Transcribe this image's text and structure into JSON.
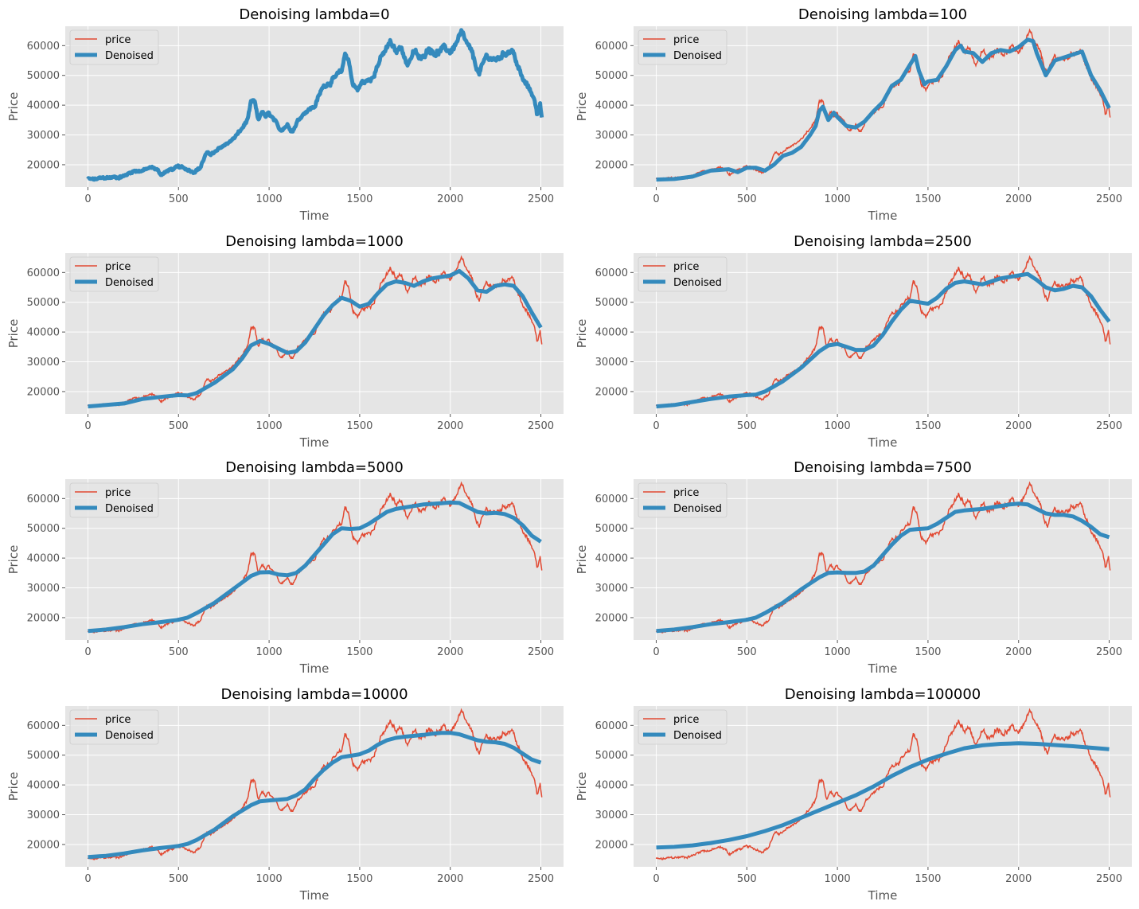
{
  "series_names": [
    "price",
    "Denoised"
  ],
  "colors": {
    "price": "#E24A33",
    "denoised": "#348ABD",
    "panel_bg": "#E5E5E5",
    "grid": "#FFFFFF",
    "text": "#555555"
  },
  "chart_data": [
    {
      "type": "line",
      "title": "Denoising lambda=0",
      "xlabel": "Time",
      "ylabel": "Price",
      "xlim": [
        -125,
        2625
      ],
      "ylim": [
        12500,
        66500
      ],
      "xticks": [
        0,
        500,
        1000,
        1500,
        2000,
        2500
      ],
      "yticks": [
        20000,
        30000,
        40000,
        50000,
        60000
      ],
      "legend": "upper-left",
      "grid": true,
      "denoised": {
        "x": [],
        "y": []
      }
    },
    {
      "type": "line",
      "title": "Denoising lambda=100",
      "xlabel": "Time",
      "ylabel": "Price",
      "xlim": [
        -125,
        2625
      ],
      "ylim": [
        12500,
        66500
      ],
      "xticks": [
        0,
        500,
        1000,
        1500,
        2000,
        2500
      ],
      "yticks": [
        20000,
        30000,
        40000,
        50000,
        60000
      ],
      "legend": "upper-left",
      "grid": true,
      "denoised": {
        "x": [
          0,
          100,
          200,
          300,
          400,
          450,
          500,
          550,
          600,
          650,
          700,
          750,
          800,
          850,
          880,
          900,
          920,
          950,
          980,
          1000,
          1050,
          1100,
          1150,
          1200,
          1250,
          1300,
          1350,
          1400,
          1430,
          1450,
          1480,
          1500,
          1550,
          1600,
          1650,
          1680,
          1700,
          1750,
          1800,
          1850,
          1900,
          1950,
          2000,
          2050,
          2080,
          2100,
          2150,
          2200,
          2250,
          2300,
          2350,
          2400,
          2450,
          2500
        ],
        "y": [
          15000,
          15200,
          16000,
          18000,
          18500,
          17500,
          19000,
          19000,
          18000,
          20000,
          23000,
          24000,
          26000,
          30000,
          33000,
          38000,
          39500,
          35000,
          37500,
          36000,
          33000,
          32500,
          34500,
          38000,
          41000,
          46500,
          48500,
          53500,
          56500,
          51500,
          47000,
          48000,
          48500,
          53000,
          58500,
          60000,
          58000,
          57500,
          54500,
          57500,
          58500,
          58000,
          59500,
          62000,
          61500,
          57500,
          50000,
          55000,
          56000,
          57000,
          58000,
          50000,
          45000,
          39000
        ]
      }
    },
    {
      "type": "line",
      "title": "Denoising lambda=1000",
      "xlabel": "Time",
      "ylabel": "Price",
      "xlim": [
        -125,
        2625
      ],
      "ylim": [
        12500,
        66500
      ],
      "xticks": [
        0,
        500,
        1000,
        1500,
        2000,
        2500
      ],
      "yticks": [
        20000,
        30000,
        40000,
        50000,
        60000
      ],
      "legend": "upper-left",
      "grid": true,
      "denoised": {
        "x": [
          0,
          100,
          200,
          300,
          400,
          500,
          550,
          600,
          700,
          800,
          850,
          900,
          950,
          1000,
          1050,
          1100,
          1150,
          1200,
          1250,
          1300,
          1350,
          1400,
          1450,
          1500,
          1550,
          1600,
          1650,
          1700,
          1750,
          1800,
          1850,
          1900,
          1950,
          2000,
          2050,
          2100,
          2150,
          2200,
          2250,
          2300,
          2350,
          2400,
          2450,
          2500
        ],
        "y": [
          15000,
          15500,
          16000,
          17500,
          18200,
          18800,
          18700,
          19500,
          23000,
          27500,
          31000,
          35500,
          37000,
          36000,
          34500,
          33000,
          33500,
          36500,
          41000,
          45500,
          49000,
          51500,
          50500,
          48500,
          49500,
          53000,
          56000,
          57000,
          56500,
          55500,
          57000,
          58000,
          58500,
          59000,
          60500,
          58000,
          54000,
          53500,
          55500,
          56000,
          55500,
          52000,
          46500,
          41500
        ]
      }
    },
    {
      "type": "line",
      "title": "Denoising lambda=2500",
      "xlabel": "Time",
      "ylabel": "Price",
      "xlim": [
        -125,
        2625
      ],
      "ylim": [
        12500,
        66500
      ],
      "xticks": [
        0,
        500,
        1000,
        1500,
        2000,
        2500
      ],
      "yticks": [
        20000,
        30000,
        40000,
        50000,
        60000
      ],
      "legend": "upper-left",
      "grid": true,
      "denoised": {
        "x": [
          0,
          100,
          200,
          300,
          400,
          500,
          550,
          600,
          700,
          800,
          900,
          950,
          1000,
          1050,
          1100,
          1150,
          1200,
          1250,
          1300,
          1350,
          1400,
          1450,
          1500,
          1550,
          1600,
          1650,
          1700,
          1750,
          1800,
          1850,
          1900,
          1950,
          2000,
          2050,
          2100,
          2150,
          2200,
          2250,
          2300,
          2350,
          2400,
          2450,
          2500
        ],
        "y": [
          15000,
          15500,
          16500,
          17500,
          18300,
          18800,
          19000,
          20000,
          23500,
          28000,
          33500,
          35500,
          36000,
          35000,
          34000,
          34000,
          35500,
          39000,
          43500,
          47500,
          50500,
          50000,
          49500,
          51500,
          54500,
          56500,
          57000,
          56500,
          56000,
          57000,
          58000,
          58500,
          59000,
          59500,
          57500,
          55000,
          54000,
          54500,
          55500,
          55000,
          52000,
          47500,
          43500
        ]
      }
    },
    {
      "type": "line",
      "title": "Denoising lambda=5000",
      "xlabel": "Time",
      "ylabel": "Price",
      "xlim": [
        -125,
        2625
      ],
      "ylim": [
        12500,
        66500
      ],
      "xticks": [
        0,
        500,
        1000,
        1500,
        2000,
        2500
      ],
      "yticks": [
        20000,
        30000,
        40000,
        50000,
        60000
      ],
      "legend": "upper-left",
      "grid": true,
      "denoised": {
        "x": [
          0,
          100,
          200,
          300,
          400,
          500,
          550,
          600,
          700,
          800,
          900,
          950,
          1000,
          1050,
          1100,
          1150,
          1200,
          1250,
          1300,
          1350,
          1400,
          1450,
          1500,
          1550,
          1600,
          1650,
          1700,
          1750,
          1800,
          1850,
          1900,
          1950,
          2000,
          2050,
          2100,
          2150,
          2200,
          2250,
          2300,
          2350,
          2400,
          2450,
          2500
        ],
        "y": [
          15500,
          16000,
          16800,
          17800,
          18500,
          19300,
          20000,
          21500,
          25000,
          29500,
          34000,
          35200,
          35300,
          34500,
          34200,
          35000,
          37500,
          41000,
          44500,
          48000,
          50000,
          49800,
          50000,
          51500,
          53500,
          55500,
          56500,
          57000,
          57500,
          58000,
          58200,
          58400,
          58700,
          58500,
          57000,
          55500,
          55000,
          55200,
          54800,
          53500,
          51000,
          47500,
          45500
        ]
      }
    },
    {
      "type": "line",
      "title": "Denoising lambda=7500",
      "xlabel": "Time",
      "ylabel": "Price",
      "xlim": [
        -125,
        2625
      ],
      "ylim": [
        12500,
        66500
      ],
      "xticks": [
        0,
        500,
        1000,
        1500,
        2000,
        2500
      ],
      "yticks": [
        20000,
        30000,
        40000,
        50000,
        60000
      ],
      "legend": "upper-left",
      "grid": true,
      "denoised": {
        "x": [
          0,
          100,
          200,
          300,
          400,
          500,
          550,
          600,
          700,
          800,
          900,
          950,
          1000,
          1050,
          1100,
          1150,
          1200,
          1250,
          1300,
          1350,
          1400,
          1450,
          1500,
          1550,
          1600,
          1650,
          1700,
          1750,
          1800,
          1850,
          1900,
          1950,
          2000,
          2050,
          2100,
          2150,
          2200,
          2250,
          2300,
          2350,
          2400,
          2450,
          2500
        ],
        "y": [
          15500,
          16000,
          16800,
          17800,
          18500,
          19300,
          20000,
          21500,
          25000,
          29500,
          33500,
          35000,
          35200,
          35000,
          35000,
          35500,
          37500,
          41000,
          44500,
          47500,
          49500,
          49800,
          50000,
          51500,
          53500,
          55500,
          56000,
          56300,
          56500,
          57000,
          57500,
          58000,
          58300,
          58000,
          56500,
          55000,
          54500,
          54500,
          54000,
          52500,
          50500,
          48000,
          47000
        ]
      }
    },
    {
      "type": "line",
      "title": "Denoising lambda=10000",
      "xlabel": "Time",
      "ylabel": "Price",
      "xlim": [
        -125,
        2625
      ],
      "ylim": [
        12500,
        66500
      ],
      "xticks": [
        0,
        500,
        1000,
        1500,
        2000,
        2500
      ],
      "yticks": [
        20000,
        30000,
        40000,
        50000,
        60000
      ],
      "legend": "upper-left",
      "grid": true,
      "denoised": {
        "x": [
          0,
          100,
          200,
          300,
          400,
          500,
          550,
          600,
          700,
          800,
          900,
          950,
          1000,
          1050,
          1100,
          1150,
          1200,
          1250,
          1300,
          1350,
          1400,
          1450,
          1500,
          1550,
          1600,
          1650,
          1700,
          1750,
          1800,
          1850,
          1900,
          1950,
          2000,
          2050,
          2100,
          2150,
          2200,
          2250,
          2300,
          2350,
          2400,
          2450,
          2500
        ],
        "y": [
          15800,
          16200,
          17000,
          18000,
          18800,
          19500,
          20200,
          21500,
          25000,
          29500,
          33200,
          34500,
          34800,
          35000,
          35300,
          36500,
          38500,
          42000,
          45000,
          47500,
          49300,
          49800,
          50300,
          51500,
          53500,
          55000,
          55800,
          56200,
          56500,
          56800,
          57200,
          57500,
          57500,
          57000,
          56000,
          55000,
          54500,
          54300,
          53800,
          52500,
          50500,
          48500,
          47500
        ]
      }
    },
    {
      "type": "line",
      "title": "Denoising lambda=100000",
      "xlabel": "Time",
      "ylabel": "Price",
      "xlim": [
        -125,
        2625
      ],
      "ylim": [
        12500,
        66500
      ],
      "xticks": [
        0,
        500,
        1000,
        1500,
        2000,
        2500
      ],
      "yticks": [
        20000,
        30000,
        40000,
        50000,
        60000
      ],
      "legend": "upper-left",
      "grid": true,
      "denoised": {
        "x": [
          0,
          100,
          200,
          300,
          400,
          500,
          600,
          700,
          800,
          900,
          1000,
          1100,
          1200,
          1300,
          1400,
          1500,
          1600,
          1700,
          1800,
          1900,
          2000,
          2100,
          2200,
          2300,
          2400,
          2500
        ],
        "y": [
          19000,
          19200,
          19700,
          20500,
          21500,
          22800,
          24500,
          26500,
          29000,
          31500,
          34000,
          36500,
          39500,
          43000,
          46000,
          48500,
          50500,
          52300,
          53300,
          53800,
          54000,
          53800,
          53400,
          53000,
          52500,
          52000
        ]
      }
    }
  ]
}
